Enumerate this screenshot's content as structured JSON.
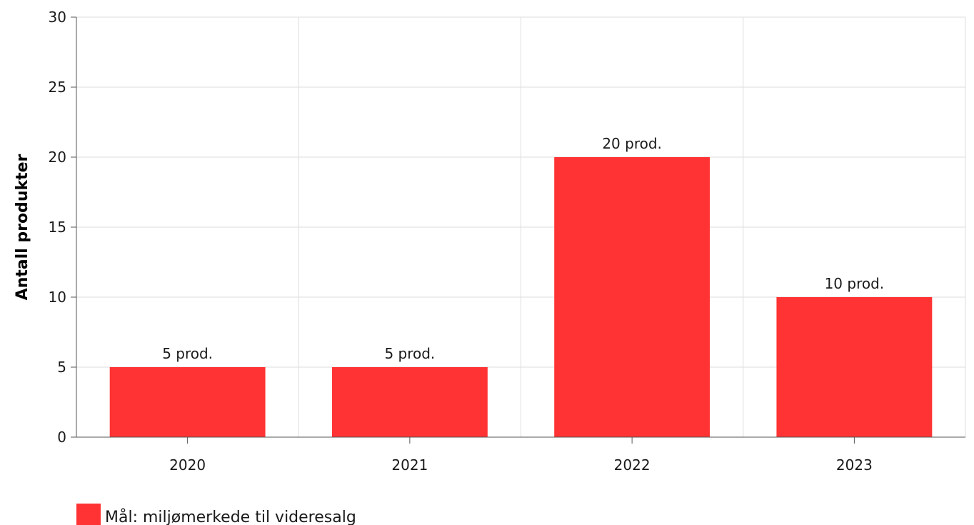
{
  "chart_data": {
    "type": "bar",
    "categories": [
      "2020",
      "2021",
      "2022",
      "2023"
    ],
    "series": [
      {
        "name": "Mål: miljømerkede til videresalg",
        "values": [
          5,
          5,
          20,
          10
        ],
        "data_labels": [
          "5 prod.",
          "5 prod.",
          "20 prod.",
          "10 prod."
        ],
        "color": "#ff3333"
      }
    ],
    "title": "",
    "xlabel": "",
    "ylabel": "Antall produkter",
    "ylim": [
      0,
      30
    ],
    "yticks": [
      0,
      5,
      10,
      15,
      20,
      25,
      30
    ],
    "grid": true,
    "legend_position": "bottom-left"
  },
  "colors": {
    "grid": "#dddddd",
    "axis": "#555555",
    "bar": "#ff3333"
  }
}
